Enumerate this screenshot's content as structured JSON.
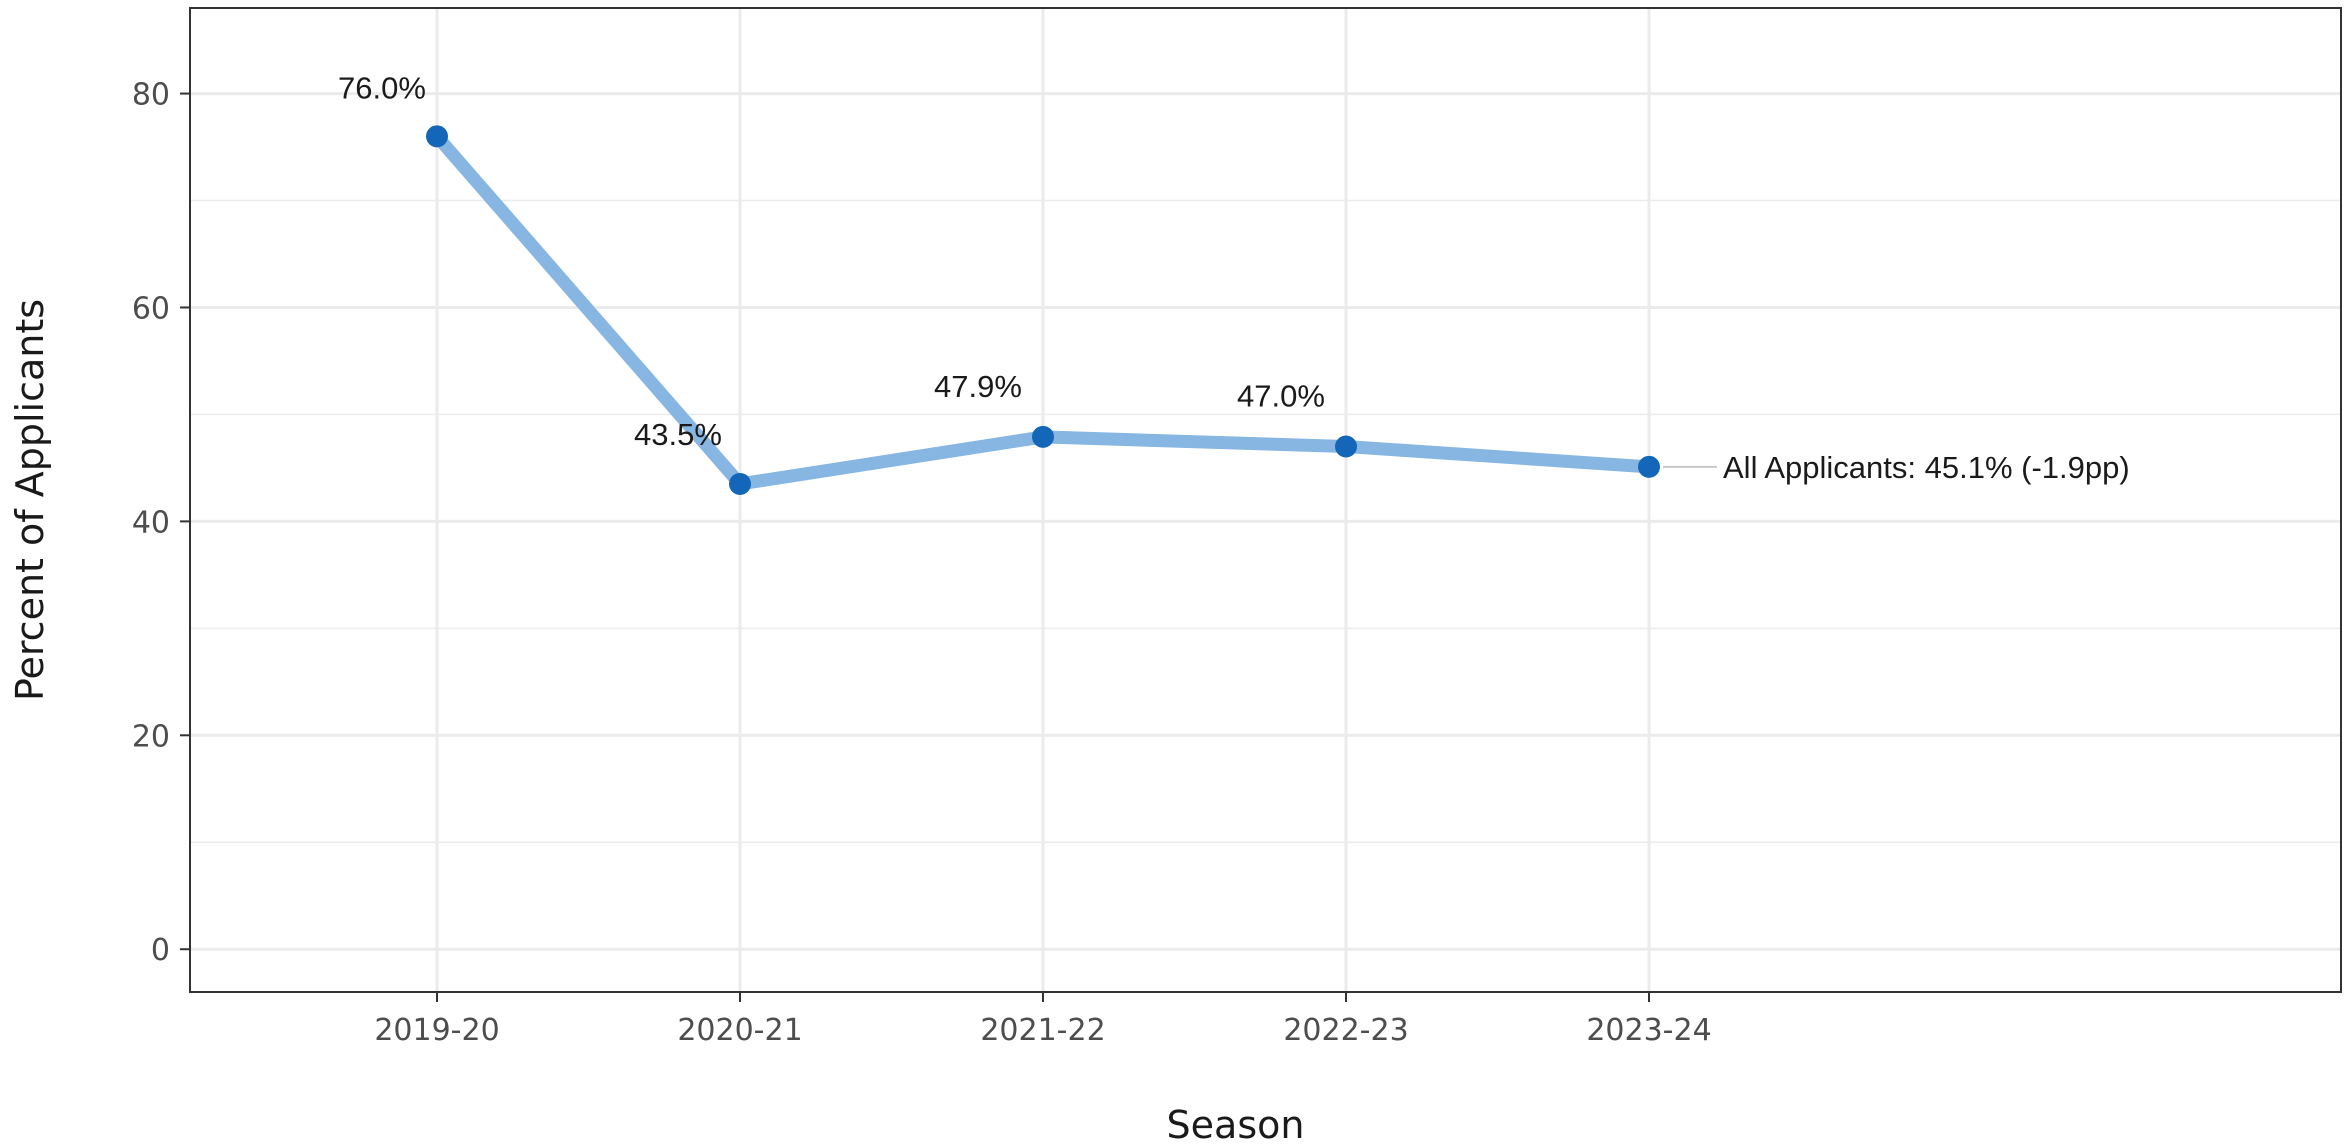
{
  "chart_data": {
    "type": "line",
    "title": "",
    "xlabel": "Season",
    "ylabel": "Percent of Applicants",
    "categories": [
      "2019-20",
      "2020-21",
      "2021-22",
      "2022-23",
      "2023-24"
    ],
    "ylim": [
      -4,
      88
    ],
    "yticks": [
      0,
      20,
      40,
      60,
      80
    ],
    "grid": true,
    "series": [
      {
        "name": "All Applicants",
        "values": [
          76.0,
          43.5,
          47.9,
          47.0,
          45.1
        ],
        "point_labels": [
          "76.0%",
          "43.5%",
          "47.9%",
          "47.0%",
          ""
        ],
        "end_label": "All Applicants: 45.1% (-1.9pp)"
      }
    ],
    "colors": {
      "line": "#86b6e1",
      "point": "#1467b8",
      "grid": "#ebebeb",
      "panel_border": "#333333",
      "leader": "#c8c8c8"
    }
  }
}
